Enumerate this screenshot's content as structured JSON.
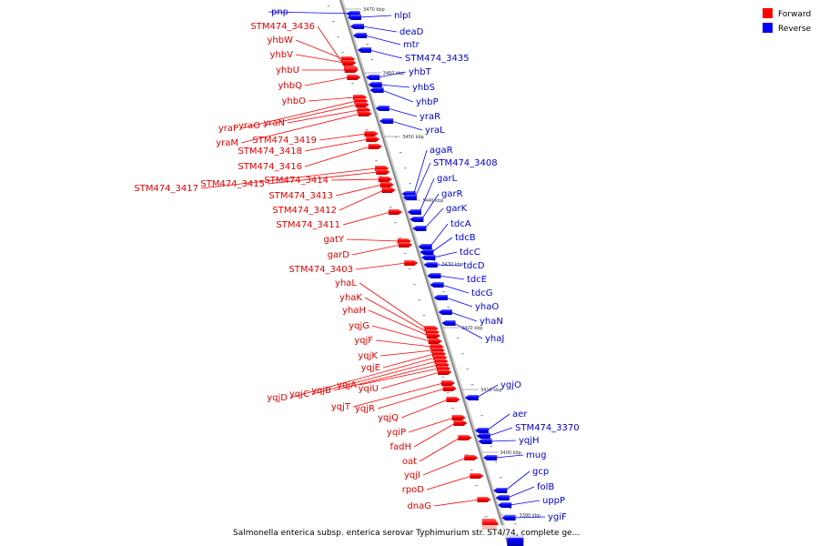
{
  "legend": {
    "forward_label": "Forward",
    "reverse_label": "Reverse",
    "forward_color": "#ff0000",
    "reverse_color": "#0000ff"
  },
  "caption": "Salmonella enterica subsp. enterica serovar Typhimurium str. ST4/74, complete ge...",
  "ticks": [
    "3470 kbp",
    "3460 kbp",
    "3450 kbp",
    "3440 kbp",
    "3430 kbp",
    "3420 kbp",
    "3410 kbp",
    "3400 kbp",
    "3390 kbp"
  ],
  "forward_genes": [
    "STM474_3436",
    "yhbW",
    "yhbV",
    "yhbU",
    "yhbQ",
    "yhbO",
    "yraP",
    "yraO",
    "yraN",
    "yraM",
    "STM474_3419",
    "STM474_3418",
    "STM474_3416",
    "STM474_3417",
    "STM474_3415",
    "STM474_3414",
    "STM474_3413",
    "STM474_3412",
    "STM474_3411",
    "gatY",
    "garD",
    "STM474_3403",
    "yhaL",
    "yhaK",
    "yhaH",
    "yqjG",
    "yqjF",
    "yqjK",
    "yqjE",
    "yqjD",
    "yqjC",
    "yqjB",
    "yqjA",
    "yqiU",
    "yqjT",
    "yqjR",
    "yqjQ",
    "yqiP",
    "fadH",
    "oat",
    "yqjI",
    "rpoD",
    "dnaG"
  ],
  "reverse_genes": [
    "pnp",
    "nlpI",
    "deaD",
    "mtr",
    "STM474_3435",
    "yhbT",
    "yhbS",
    "yhbP",
    "yraR",
    "yraL",
    "agaR",
    "STM474_3408",
    "garL",
    "garR",
    "garK",
    "tdcA",
    "tdcB",
    "tdcC",
    "tdcD",
    "tdcE",
    "tdcG",
    "yhaO",
    "yhaN",
    "yhaJ",
    "ygjO",
    "aer",
    "STM474_3370",
    "yqjH",
    "mug",
    "gcp",
    "folB",
    "uppP",
    "ygiF"
  ]
}
